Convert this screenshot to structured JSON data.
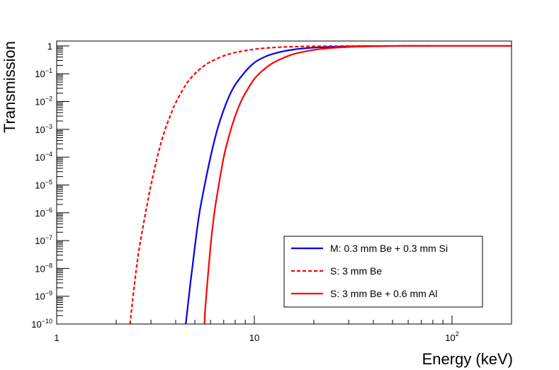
{
  "chart_data": {
    "type": "line",
    "xlabel": "Energy (keV)",
    "ylabel": "Transmission",
    "x_scale": "log",
    "y_scale": "log",
    "xlim": [
      1,
      200
    ],
    "ylim": [
      1e-10,
      1.5
    ],
    "x_ticks": [
      {
        "value": 1,
        "base": "1",
        "exp": ""
      },
      {
        "value": 10,
        "base": "10",
        "exp": ""
      },
      {
        "value": 100,
        "base": "10",
        "exp": "2"
      }
    ],
    "y_ticks": [
      {
        "value": 1,
        "base": "1",
        "exp": ""
      },
      {
        "value": 0.1,
        "base": "10",
        "exp": "−1"
      },
      {
        "value": 0.01,
        "base": "10",
        "exp": "−2"
      },
      {
        "value": 0.001,
        "base": "10",
        "exp": "−3"
      },
      {
        "value": 0.0001,
        "base": "10",
        "exp": "−4"
      },
      {
        "value": 1e-05,
        "base": "10",
        "exp": "−5"
      },
      {
        "value": 1e-06,
        "base": "10",
        "exp": "−6"
      },
      {
        "value": 1e-07,
        "base": "10",
        "exp": "−7"
      },
      {
        "value": 1e-08,
        "base": "10",
        "exp": "−8"
      },
      {
        "value": 1e-09,
        "base": "10",
        "exp": "−9"
      },
      {
        "value": 1e-10,
        "base": "10",
        "exp": "−10"
      }
    ],
    "legend_position": "bottom-right",
    "series": [
      {
        "name": "M: 0.3 mm Be + 0.3 mm Si",
        "color": "#0000e6",
        "dash": "solid",
        "x": [
          4.5,
          4.75,
          5.0,
          5.25,
          5.5,
          6.0,
          6.5,
          7.0,
          7.5,
          8.0,
          9.0,
          10.0,
          11.0,
          12.0,
          14.0,
          16.0,
          18.0,
          20.0,
          25.0,
          30.0,
          40.0,
          55.0,
          70.0,
          100.0,
          200.0
        ],
        "y": [
          1e-10,
          3e-09,
          6e-08,
          8e-07,
          5e-06,
          0.0001,
          0.001,
          0.005,
          0.017,
          0.04,
          0.12,
          0.25,
          0.37,
          0.48,
          0.64,
          0.75,
          0.82,
          0.87,
          0.93,
          0.96,
          0.985,
          1.0,
          1.0,
          1.0,
          1.0
        ]
      },
      {
        "name": "S: 3 mm Be",
        "color": "#ff0000",
        "dash": "dashed",
        "x": [
          2.35,
          2.4,
          2.5,
          2.6,
          2.75,
          2.9,
          3.0,
          3.25,
          3.5,
          3.75,
          4.0,
          4.5,
          5.0,
          5.5,
          6.0,
          7.0,
          8.0,
          9.0,
          10.0,
          12.0,
          15.0,
          20.0,
          30.0,
          50.0,
          100.0,
          200.0
        ],
        "y": [
          1e-10,
          4e-10,
          5e-09,
          4e-08,
          4e-07,
          3e-06,
          1e-05,
          0.00012,
          0.0008,
          0.003,
          0.009,
          0.04,
          0.1,
          0.18,
          0.27,
          0.44,
          0.58,
          0.68,
          0.76,
          0.86,
          0.93,
          0.97,
          0.99,
          1.0,
          1.0,
          1.0
        ]
      },
      {
        "name": "S: 3 mm Be + 0.6 mm Al",
        "color": "#ff0000",
        "dash": "solid",
        "x": [
          5.6,
          5.65,
          6.0,
          6.25,
          6.5,
          7.0,
          7.5,
          8.0,
          8.5,
          9.0,
          10.0,
          11.0,
          12.0,
          13.0,
          15.0,
          17.0,
          20.0,
          25.0,
          30.0,
          40.0,
          55.0,
          70.0,
          100.0,
          200.0
        ],
        "y": [
          1e-10,
          4e-10,
          6e-08,
          8e-07,
          5e-06,
          0.0001,
          0.0007,
          0.003,
          0.009,
          0.02,
          0.065,
          0.13,
          0.21,
          0.29,
          0.45,
          0.58,
          0.72,
          0.85,
          0.92,
          0.97,
          1.0,
          1.0,
          1.0,
          1.0
        ]
      }
    ]
  }
}
